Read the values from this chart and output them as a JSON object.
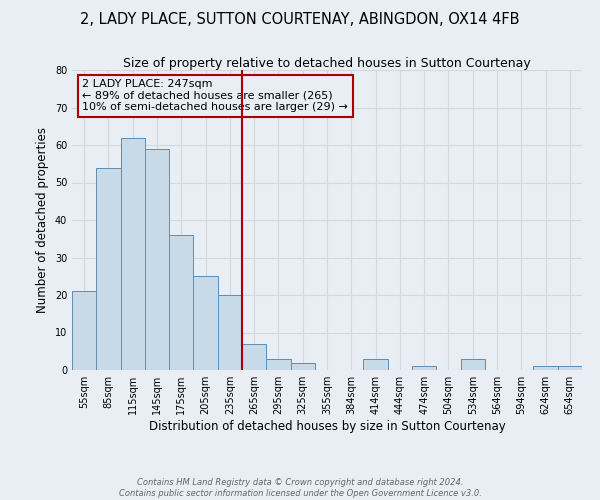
{
  "title": "2, LADY PLACE, SUTTON COURTENAY, ABINGDON, OX14 4FB",
  "subtitle": "Size of property relative to detached houses in Sutton Courtenay",
  "xlabel": "Distribution of detached houses by size in Sutton Courtenay",
  "ylabel": "Number of detached properties",
  "bar_labels": [
    "55sqm",
    "85sqm",
    "115sqm",
    "145sqm",
    "175sqm",
    "205sqm",
    "235sqm",
    "265sqm",
    "295sqm",
    "325sqm",
    "355sqm",
    "384sqm",
    "414sqm",
    "444sqm",
    "474sqm",
    "504sqm",
    "534sqm",
    "564sqm",
    "594sqm",
    "624sqm",
    "654sqm"
  ],
  "bar_values": [
    21,
    54,
    62,
    59,
    36,
    25,
    20,
    7,
    3,
    2,
    0,
    0,
    3,
    0,
    1,
    0,
    3,
    0,
    0,
    1,
    1
  ],
  "bar_color": "#c8d9e8",
  "bar_edge_color": "#5b8db8",
  "ylim": [
    0,
    80
  ],
  "yticks": [
    0,
    10,
    20,
    30,
    40,
    50,
    60,
    70,
    80
  ],
  "vline_x_index": 6.5,
  "vline_color": "#aa0000",
  "annotation_title": "2 LADY PLACE: 247sqm",
  "annotation_line1": "← 89% of detached houses are smaller (265)",
  "annotation_line2": "10% of semi-detached houses are larger (29) →",
  "annotation_box_color": "#aa0000",
  "bg_color": "#e8eef4",
  "grid_color": "#d0d8e0",
  "footer1": "Contains HM Land Registry data © Crown copyright and database right 2024.",
  "footer2": "Contains public sector information licensed under the Open Government Licence v3.0.",
  "title_fontsize": 10.5,
  "subtitle_fontsize": 9,
  "tick_fontsize": 7,
  "axis_label_fontsize": 8.5,
  "annotation_fontsize": 8,
  "footer_fontsize": 6
}
